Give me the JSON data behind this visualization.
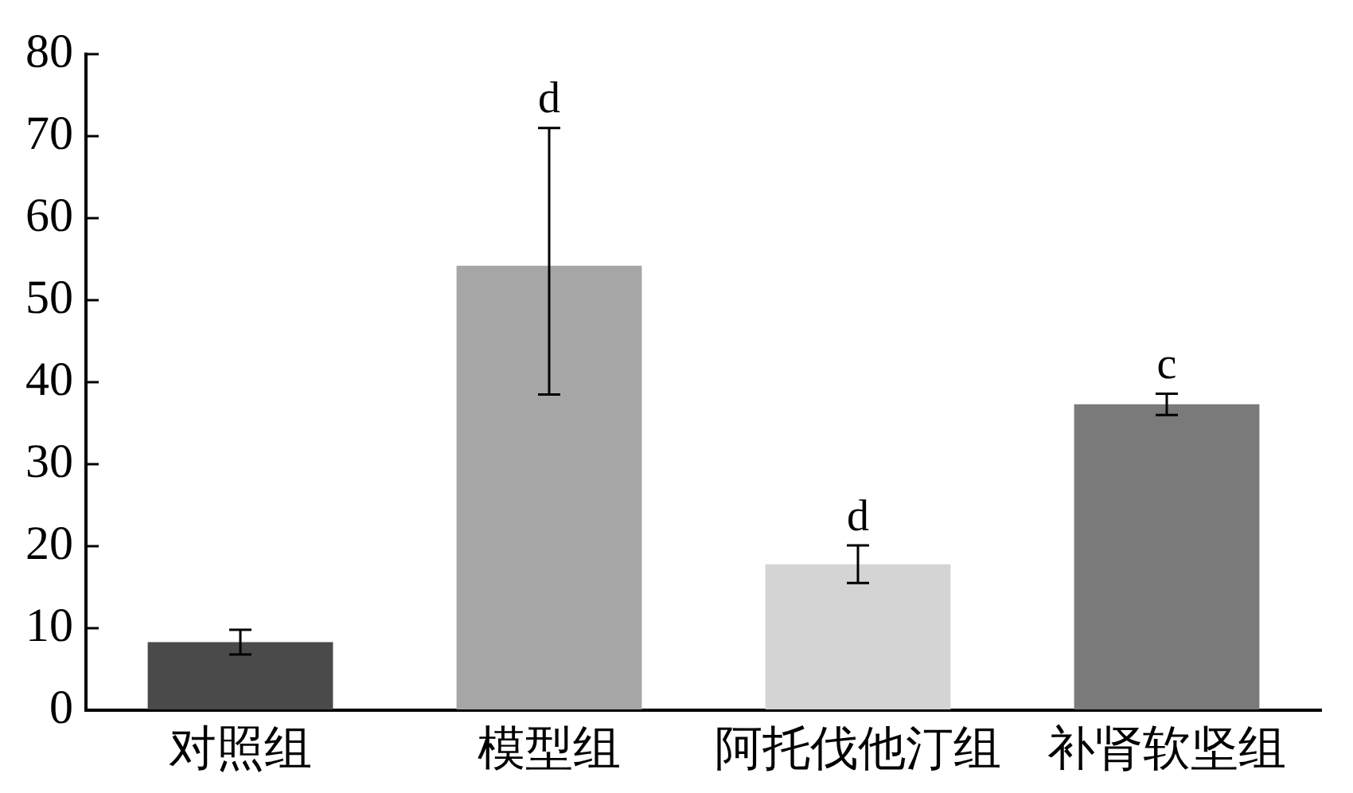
{
  "chart_data": {
    "type": "bar",
    "categories": [
      "对照组",
      "模型组",
      "阿托伐他汀组",
      "补肾软坚组"
    ],
    "values": [
      8.3,
      54.2,
      17.8,
      37.3
    ],
    "colors": [
      "#4a4a4a",
      "#a6a6a6",
      "#d4d4d4",
      "#7a7a7a"
    ],
    "errors": [
      1.5,
      [
        38.5,
        71
      ],
      2.3,
      1.3
    ],
    "ylim": [
      0,
      80
    ],
    "yticks": [
      0,
      10,
      20,
      30,
      40,
      50,
      60,
      70,
      80
    ],
    "grid": false,
    "legend": false,
    "annotations": [
      {
        "text": "d",
        "x": "模型组",
        "y": 71
      },
      {
        "text": "d",
        "x": "阿托伐他汀组",
        "y": 20.1
      },
      {
        "text": "c",
        "x": "补肾软坚组",
        "y": 38.6
      }
    ]
  }
}
